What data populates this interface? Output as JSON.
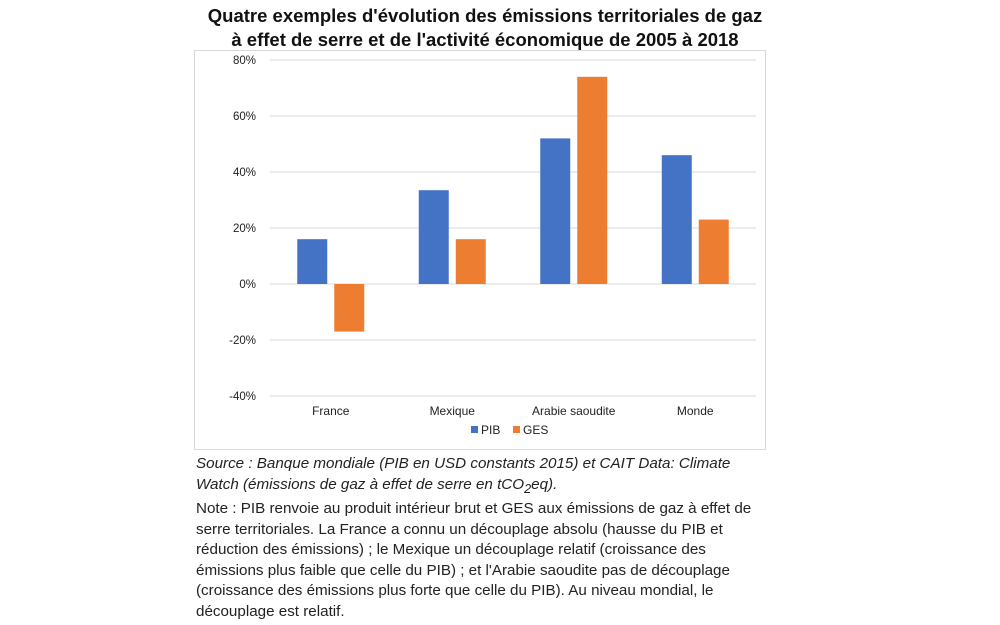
{
  "chart_data": {
    "type": "bar",
    "title_line1": "Quatre exemples d'évolution des émissions territoriales de gaz",
    "title_line2": "à effet de serre et de l'activité économique de 2005 à 2018",
    "categories": [
      "France",
      "Mexique",
      "Arabie saoudite",
      "Monde"
    ],
    "series": [
      {
        "name": "PIB",
        "color": "#4472c4",
        "values": [
          16,
          33.5,
          52,
          46
        ]
      },
      {
        "name": "GES",
        "color": "#ed7d31",
        "values": [
          -17,
          16,
          74,
          23
        ]
      }
    ],
    "ylim": [
      -40,
      80
    ],
    "yticks": [
      -40,
      -20,
      0,
      20,
      40,
      60,
      80
    ],
    "ytick_labels": [
      "-40%",
      "-20%",
      "0%",
      "20%",
      "40%",
      "60%",
      "80%"
    ],
    "grid": true,
    "legend_position": "bottom-center",
    "xlabel": "",
    "ylabel": ""
  },
  "footnote": {
    "source_pre": "Source : Banque mondiale (PIB en USD constants 2015) et CAIT Data: Climate Watch (émissions de gaz à effet de serre en tCO",
    "source_sub": "2",
    "source_post": "eq).",
    "note": "Note : PIB renvoie au produit intérieur brut et GES aux émissions de gaz à effet de serre territoriales. La France a connu un découplage absolu (hausse du PIB et réduction des émissions) ; le Mexique un découplage relatif (croissance des émissions plus faible que celle du PIB) ; et l'Arabie saoudite pas de découplage (croissance des émissions plus forte que celle du PIB). Au niveau mondial, le découplage est relatif."
  }
}
